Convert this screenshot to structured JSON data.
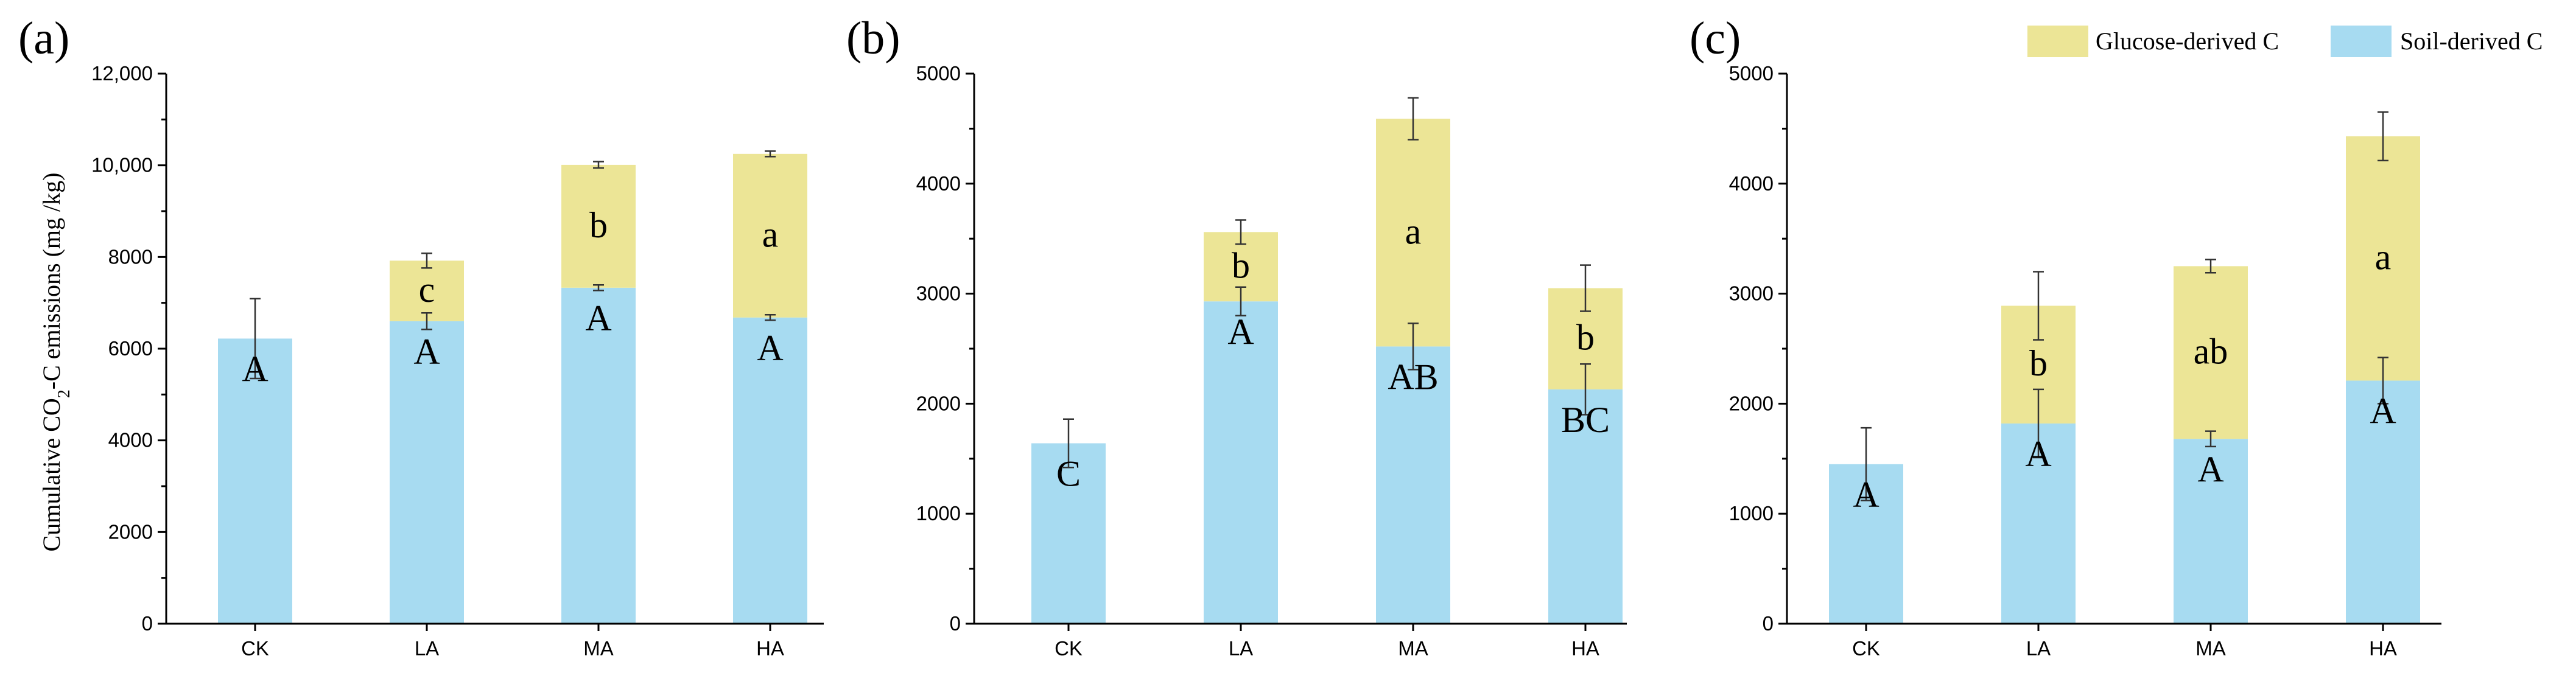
{
  "colors": {
    "glucose": "#ECE596",
    "soil": "#A7DBF1"
  },
  "legend": {
    "glucose_label": "Glucose-derived C",
    "soil_label": "Soil-derived C"
  },
  "chart_data": [
    {
      "type": "bar",
      "stacked": true,
      "panel_label": "(a)",
      "ylabel": "Cumulative CO2-C emissions (mg /kg)",
      "ylim": [
        0,
        12000
      ],
      "yticks": [
        "0",
        "2000",
        "4000",
        "6000",
        "8000",
        "10,000",
        "12,000"
      ],
      "categories": [
        "CK",
        "LA",
        "MA",
        "HA"
      ],
      "series": [
        {
          "name": "Soil-derived C",
          "values": [
            6220,
            6600,
            7330,
            6680
          ],
          "errors": [
            870,
            180,
            60,
            60
          ],
          "labels": [
            "A",
            "A",
            "A",
            "A"
          ]
        },
        {
          "name": "Glucose-derived C",
          "values": [
            0,
            1320,
            2680,
            3570
          ],
          "errors": [
            0,
            160,
            70,
            60
          ],
          "labels": [
            "",
            "c",
            "b",
            "a"
          ]
        }
      ]
    },
    {
      "type": "bar",
      "stacked": true,
      "panel_label": "(b)",
      "ylim": [
        0,
        5000
      ],
      "yticks": [
        "0",
        "1000",
        "2000",
        "3000",
        "4000",
        "5000"
      ],
      "categories": [
        "CK",
        "LA",
        "MA",
        "HA"
      ],
      "series": [
        {
          "name": "Soil-derived C",
          "values": [
            1640,
            2930,
            2520,
            2130
          ],
          "errors": [
            220,
            130,
            210,
            230
          ],
          "labels": [
            "C",
            "A",
            "AB",
            "BC"
          ]
        },
        {
          "name": "Glucose-derived C",
          "values": [
            0,
            630,
            2070,
            920
          ],
          "errors": [
            0,
            110,
            190,
            210
          ],
          "labels": [
            "",
            "b",
            "a",
            "b"
          ]
        }
      ]
    },
    {
      "type": "bar",
      "stacked": true,
      "panel_label": "(c)",
      "ylim": [
        0,
        5000
      ],
      "yticks": [
        "0",
        "1000",
        "2000",
        "3000",
        "4000",
        "5000"
      ],
      "categories": [
        "CK",
        "LA",
        "MA",
        "HA"
      ],
      "series": [
        {
          "name": "Soil-derived C",
          "values": [
            1450,
            1820,
            1680,
            2210
          ],
          "errors": [
            330,
            310,
            70,
            210
          ],
          "labels": [
            "A",
            "A",
            "A",
            "A"
          ]
        },
        {
          "name": "Glucose-derived C",
          "values": [
            0,
            1070,
            1570,
            2220
          ],
          "errors": [
            0,
            310,
            60,
            220
          ],
          "labels": [
            "",
            "b",
            "ab",
            "a"
          ]
        }
      ]
    }
  ]
}
